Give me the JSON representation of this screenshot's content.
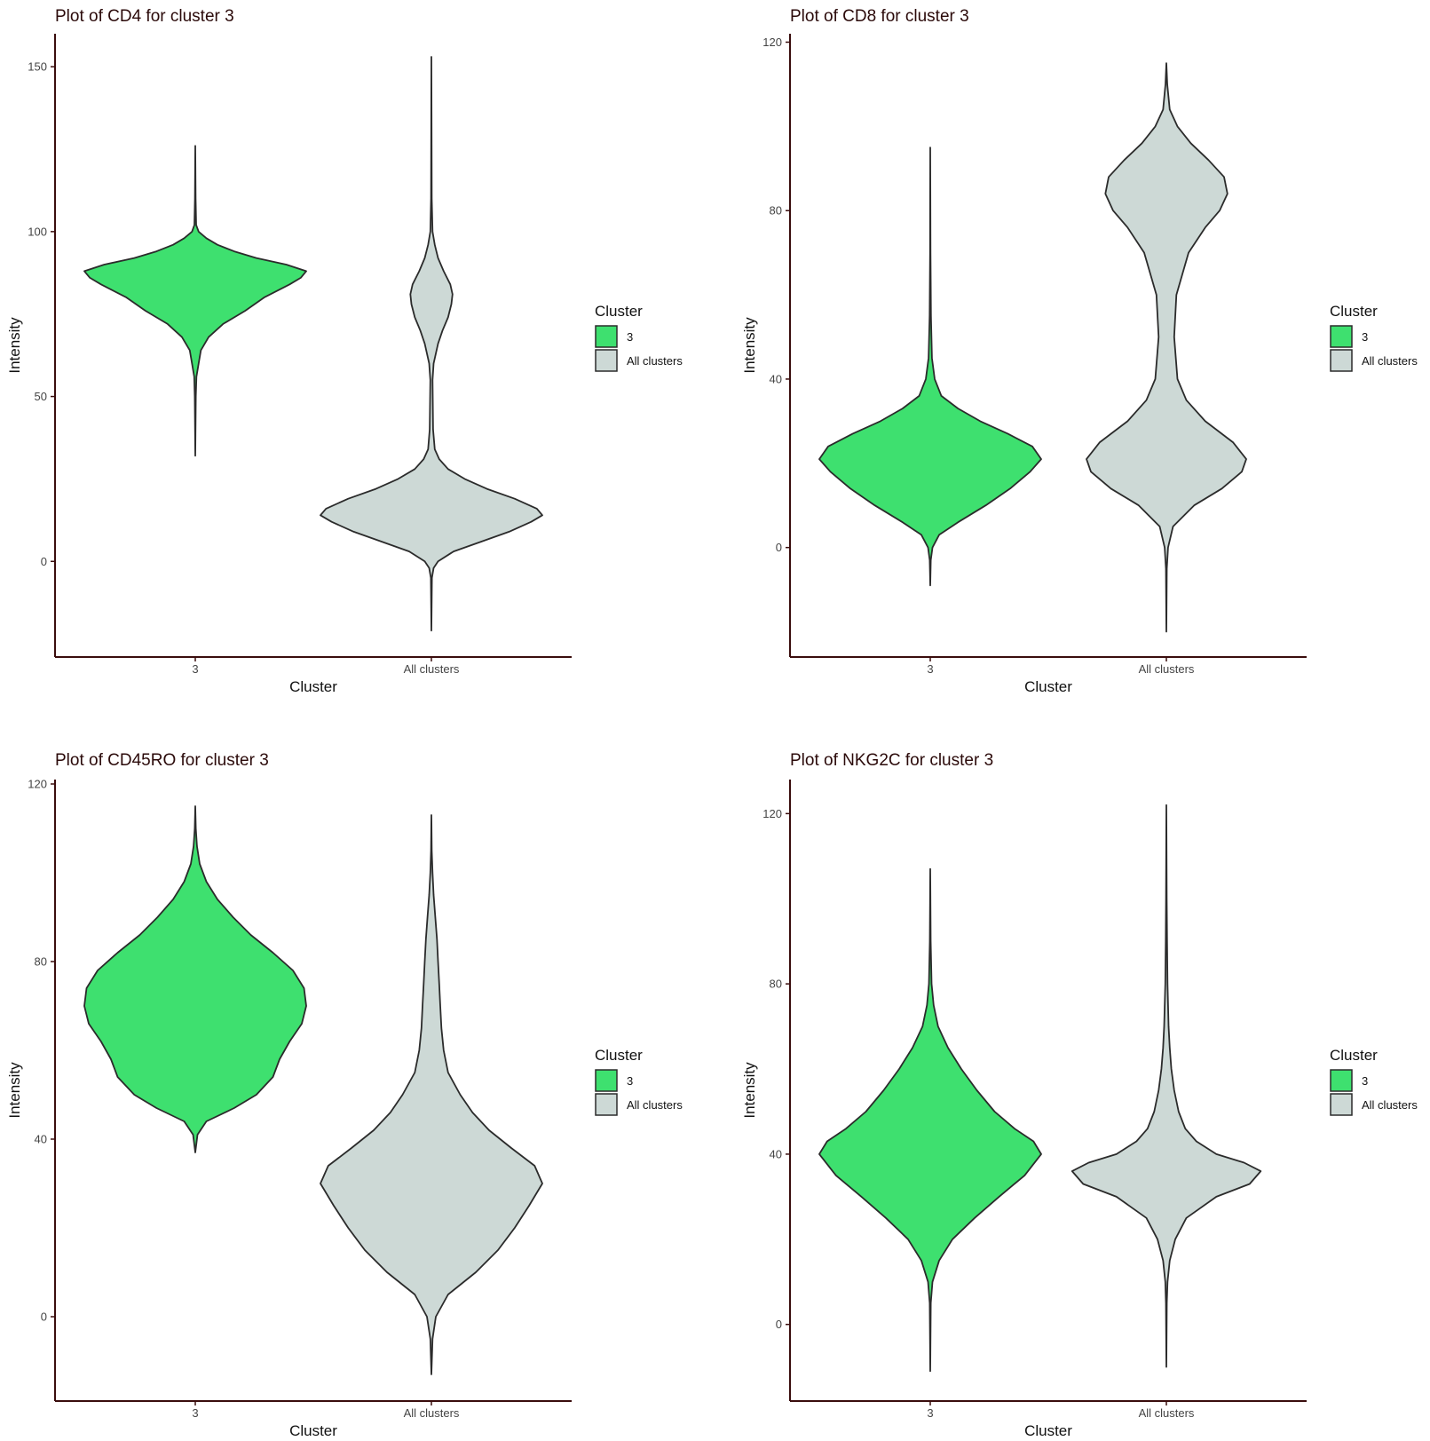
{
  "colors": {
    "cluster": "#3ee06f",
    "all": "#cdd9d6",
    "outline": "#2b2b2b",
    "axis": "#3a0d0d"
  },
  "chart_data": [
    {
      "type": "violin",
      "title": "Plot of CD4 for cluster 3",
      "xlabel": "Cluster",
      "ylabel": "Intensity",
      "categories": [
        "3",
        "All clusters"
      ],
      "ylim": [
        -29,
        160
      ],
      "yticks": [
        0,
        50,
        100,
        150
      ],
      "legend": {
        "title": "Cluster",
        "labels": [
          "3",
          "All clusters"
        ],
        "position": "right"
      },
      "series": [
        {
          "name": "3",
          "profile": [
            [
              32,
              0
            ],
            [
              50,
              0.005
            ],
            [
              56,
              0.01
            ],
            [
              60,
              0.03
            ],
            [
              64,
              0.05
            ],
            [
              68,
              0.12
            ],
            [
              72,
              0.25
            ],
            [
              76,
              0.45
            ],
            [
              80,
              0.62
            ],
            [
              84,
              0.85
            ],
            [
              86,
              0.95
            ],
            [
              88,
              1.0
            ],
            [
              90,
              0.82
            ],
            [
              92,
              0.55
            ],
            [
              94,
              0.35
            ],
            [
              96,
              0.2
            ],
            [
              98,
              0.1
            ],
            [
              100,
              0.03
            ],
            [
              102,
              0.008
            ],
            [
              110,
              0.003
            ],
            [
              126,
              0
            ]
          ]
        },
        {
          "name": "All clusters",
          "profile": [
            [
              -21,
              0
            ],
            [
              -5,
              0.005
            ],
            [
              -2,
              0.02
            ],
            [
              0,
              0.06
            ],
            [
              3,
              0.2
            ],
            [
              6,
              0.45
            ],
            [
              9,
              0.7
            ],
            [
              12,
              0.9
            ],
            [
              14,
              1.0
            ],
            [
              16,
              0.95
            ],
            [
              19,
              0.75
            ],
            [
              22,
              0.5
            ],
            [
              25,
              0.3
            ],
            [
              28,
              0.15
            ],
            [
              31,
              0.07
            ],
            [
              34,
              0.03
            ],
            [
              40,
              0.015
            ],
            [
              55,
              0.01
            ],
            [
              60,
              0.02
            ],
            [
              66,
              0.06
            ],
            [
              70,
              0.1
            ],
            [
              74,
              0.15
            ],
            [
              78,
              0.18
            ],
            [
              81,
              0.19
            ],
            [
              84,
              0.17
            ],
            [
              88,
              0.11
            ],
            [
              92,
              0.06
            ],
            [
              96,
              0.03
            ],
            [
              100,
              0.01
            ],
            [
              110,
              0.003
            ],
            [
              153,
              0
            ]
          ]
        }
      ]
    },
    {
      "type": "violin",
      "title": "Plot of CD8 for cluster 3",
      "xlabel": "Cluster",
      "ylabel": "Intensity",
      "categories": [
        "3",
        "All clusters"
      ],
      "ylim": [
        -26,
        122
      ],
      "yticks": [
        0,
        40,
        80,
        120
      ],
      "legend": {
        "title": "Cluster",
        "labels": [
          "3",
          "All clusters"
        ],
        "position": "right"
      },
      "series": [
        {
          "name": "3",
          "profile": [
            [
              -9,
              0
            ],
            [
              -3,
              0.005
            ],
            [
              0,
              0.02
            ],
            [
              3,
              0.08
            ],
            [
              6,
              0.25
            ],
            [
              10,
              0.5
            ],
            [
              14,
              0.72
            ],
            [
              18,
              0.9
            ],
            [
              21,
              1.0
            ],
            [
              24,
              0.92
            ],
            [
              27,
              0.7
            ],
            [
              30,
              0.45
            ],
            [
              33,
              0.25
            ],
            [
              36,
              0.1
            ],
            [
              40,
              0.04
            ],
            [
              45,
              0.015
            ],
            [
              55,
              0.006
            ],
            [
              70,
              0.002
            ],
            [
              95,
              0
            ]
          ]
        },
        {
          "name": "All clusters",
          "profile": [
            [
              -20,
              0
            ],
            [
              -5,
              0.004
            ],
            [
              0,
              0.015
            ],
            [
              5,
              0.06
            ],
            [
              10,
              0.25
            ],
            [
              14,
              0.5
            ],
            [
              18,
              0.68
            ],
            [
              21,
              0.72
            ],
            [
              25,
              0.6
            ],
            [
              30,
              0.35
            ],
            [
              35,
              0.18
            ],
            [
              40,
              0.1
            ],
            [
              50,
              0.07
            ],
            [
              60,
              0.09
            ],
            [
              70,
              0.2
            ],
            [
              76,
              0.35
            ],
            [
              80,
              0.48
            ],
            [
              84,
              0.55
            ],
            [
              88,
              0.52
            ],
            [
              92,
              0.38
            ],
            [
              96,
              0.22
            ],
            [
              100,
              0.1
            ],
            [
              104,
              0.03
            ],
            [
              110,
              0.008
            ],
            [
              115,
              0
            ]
          ]
        }
      ]
    },
    {
      "type": "violin",
      "title": "Plot of CD45RO for cluster 3",
      "xlabel": "Cluster",
      "ylabel": "Intensity",
      "categories": [
        "3",
        "All clusters"
      ],
      "ylim": [
        -19,
        121
      ],
      "yticks": [
        0,
        40,
        80,
        120
      ],
      "legend": {
        "title": "Cluster",
        "labels": [
          "3",
          "All clusters"
        ],
        "position": "right"
      },
      "series": [
        {
          "name": "3",
          "profile": [
            [
              37,
              0
            ],
            [
              41,
              0.02
            ],
            [
              44,
              0.1
            ],
            [
              47,
              0.35
            ],
            [
              50,
              0.55
            ],
            [
              54,
              0.7
            ],
            [
              58,
              0.76
            ],
            [
              62,
              0.85
            ],
            [
              66,
              0.96
            ],
            [
              70,
              1.0
            ],
            [
              74,
              0.98
            ],
            [
              78,
              0.88
            ],
            [
              82,
              0.7
            ],
            [
              86,
              0.5
            ],
            [
              90,
              0.34
            ],
            [
              94,
              0.2
            ],
            [
              98,
              0.1
            ],
            [
              102,
              0.04
            ],
            [
              106,
              0.015
            ],
            [
              110,
              0.005
            ],
            [
              115,
              0
            ]
          ]
        },
        {
          "name": "All clusters",
          "profile": [
            [
              -13,
              0
            ],
            [
              -5,
              0.01
            ],
            [
              0,
              0.04
            ],
            [
              5,
              0.15
            ],
            [
              10,
              0.4
            ],
            [
              15,
              0.6
            ],
            [
              20,
              0.75
            ],
            [
              25,
              0.88
            ],
            [
              30,
              1.0
            ],
            [
              34,
              0.93
            ],
            [
              38,
              0.72
            ],
            [
              42,
              0.52
            ],
            [
              46,
              0.37
            ],
            [
              50,
              0.26
            ],
            [
              55,
              0.15
            ],
            [
              60,
              0.11
            ],
            [
              65,
              0.09
            ],
            [
              70,
              0.08
            ],
            [
              75,
              0.07
            ],
            [
              80,
              0.06
            ],
            [
              85,
              0.05
            ],
            [
              90,
              0.035
            ],
            [
              95,
              0.02
            ],
            [
              100,
              0.01
            ],
            [
              105,
              0.003
            ],
            [
              113,
              0
            ]
          ]
        }
      ]
    },
    {
      "type": "violin",
      "title": "Plot of NKG2C for cluster 3",
      "xlabel": "Cluster",
      "ylabel": "Intensity",
      "categories": [
        "3",
        "All clusters"
      ],
      "ylim": [
        -18,
        128
      ],
      "yticks": [
        0,
        40,
        80,
        120
      ],
      "legend": {
        "title": "Cluster",
        "labels": [
          "3",
          "All clusters"
        ],
        "position": "right"
      },
      "series": [
        {
          "name": "3",
          "profile": [
            [
              -11,
              0
            ],
            [
              5,
              0.005
            ],
            [
              10,
              0.02
            ],
            [
              15,
              0.08
            ],
            [
              20,
              0.2
            ],
            [
              25,
              0.4
            ],
            [
              30,
              0.62
            ],
            [
              35,
              0.85
            ],
            [
              40,
              1.0
            ],
            [
              43,
              0.93
            ],
            [
              46,
              0.76
            ],
            [
              50,
              0.58
            ],
            [
              55,
              0.42
            ],
            [
              60,
              0.28
            ],
            [
              65,
              0.16
            ],
            [
              70,
              0.07
            ],
            [
              75,
              0.03
            ],
            [
              80,
              0.012
            ],
            [
              90,
              0.004
            ],
            [
              107,
              0
            ]
          ]
        },
        {
          "name": "All clusters",
          "profile": [
            [
              -10,
              0
            ],
            [
              5,
              0.004
            ],
            [
              10,
              0.01
            ],
            [
              15,
              0.03
            ],
            [
              20,
              0.08
            ],
            [
              25,
              0.18
            ],
            [
              30,
              0.45
            ],
            [
              33,
              0.75
            ],
            [
              36,
              0.85
            ],
            [
              38,
              0.7
            ],
            [
              40,
              0.45
            ],
            [
              43,
              0.27
            ],
            [
              46,
              0.17
            ],
            [
              50,
              0.11
            ],
            [
              55,
              0.07
            ],
            [
              60,
              0.045
            ],
            [
              65,
              0.03
            ],
            [
              70,
              0.02
            ],
            [
              80,
              0.01
            ],
            [
              90,
              0.006
            ],
            [
              100,
              0.003
            ],
            [
              122,
              0
            ]
          ]
        }
      ]
    }
  ]
}
